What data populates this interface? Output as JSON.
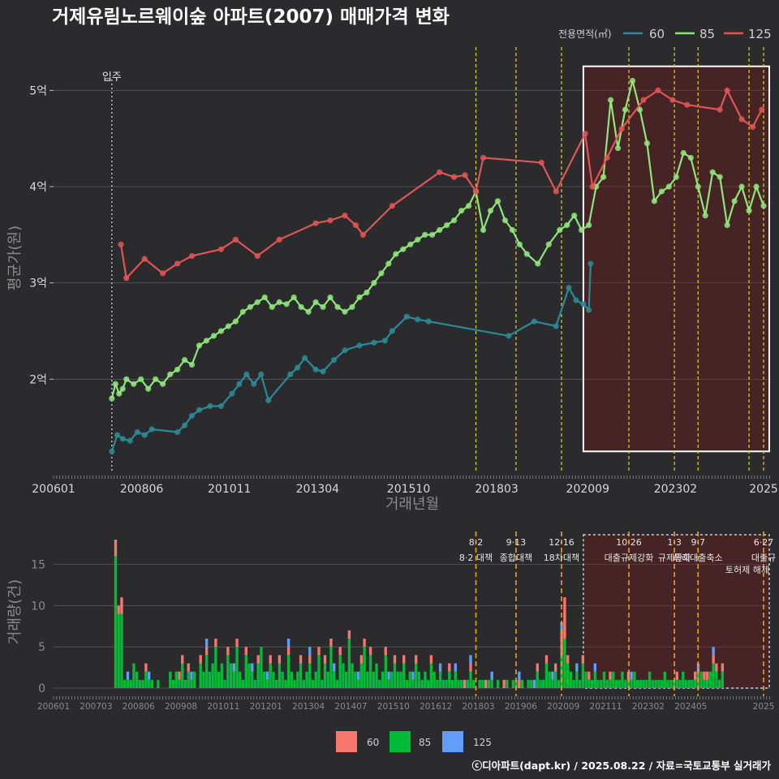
{
  "title": "거제유림노르웨이숲 아파트(2007) 매매가격 변화",
  "legend": {
    "title": "전용면적(㎡)",
    "items": [
      {
        "label": "60",
        "line_color": "#2a8a96",
        "bar_color": "#f8766d"
      },
      {
        "label": "85",
        "line_color": "#8ee67a",
        "bar_color": "#00ba38"
      },
      {
        "label": "125",
        "line_color": "#e05555",
        "bar_color": "#619cff"
      }
    ]
  },
  "credit": "ⓒ디아파트(dapt.kr) / 2025.08.22 / 자료=국토교통부 실거래가",
  "chart_data": [
    {
      "type": "line",
      "title": "거제유림노르웨이숲 아파트(2007) 매매가격 변화",
      "xlabel": "거래년월",
      "ylabel": "평균가(원)",
      "xlim": [
        2006.0,
        2025.7
      ],
      "ylim": [
        1.05,
        5.45
      ],
      "x_ticks": [
        {
          "x": 2006.0,
          "label": "200601"
        },
        {
          "x": 2008.42,
          "label": "200806"
        },
        {
          "x": 2010.83,
          "label": "201011"
        },
        {
          "x": 2013.25,
          "label": "201304"
        },
        {
          "x": 2015.75,
          "label": "201510"
        },
        {
          "x": 2018.17,
          "label": "201803"
        },
        {
          "x": 2020.67,
          "label": "202009"
        },
        {
          "x": 2023.08,
          "label": "202302"
        },
        {
          "x": 2025.5,
          "label": "2025"
        }
      ],
      "y_ticks": [
        {
          "y": 2,
          "label": "2억"
        },
        {
          "y": 3,
          "label": "3억"
        },
        {
          "y": 4,
          "label": "4억"
        },
        {
          "y": 5,
          "label": "5억"
        }
      ],
      "move_in": {
        "x": 2007.6,
        "label": "입주"
      },
      "policy_lines_x": [
        2017.6,
        2018.7,
        2019.95,
        2021.8,
        2023.05,
        2023.7,
        2025.1,
        2025.5
      ],
      "highlight_x": [
        2020.55,
        2025.7
      ],
      "series": [
        {
          "name": "60",
          "x": [
            2007.6,
            2007.75,
            2007.9,
            2008.1,
            2008.3,
            2008.5,
            2008.7,
            2009.4,
            2009.6,
            2009.8,
            2010.0,
            2010.3,
            2010.6,
            2010.9,
            2011.1,
            2011.3,
            2011.5,
            2011.7,
            2011.9,
            2012.5,
            2012.7,
            2012.9,
            2013.2,
            2013.4,
            2013.7,
            2014.0,
            2014.4,
            2014.8,
            2015.1,
            2015.3,
            2015.7,
            2016.0,
            2016.3,
            2018.5,
            2019.2,
            2019.8,
            2020.15,
            2020.35,
            2020.55,
            2020.7,
            2020.75
          ],
          "y": [
            1.25,
            1.42,
            1.38,
            1.36,
            1.45,
            1.42,
            1.48,
            1.45,
            1.52,
            1.62,
            1.68,
            1.72,
            1.72,
            1.85,
            1.95,
            2.05,
            1.95,
            2.05,
            1.78,
            2.05,
            2.12,
            2.22,
            2.1,
            2.08,
            2.2,
            2.3,
            2.35,
            2.38,
            2.4,
            2.5,
            2.65,
            2.62,
            2.6,
            2.45,
            2.6,
            2.55,
            2.95,
            2.82,
            2.78,
            2.72,
            3.2
          ]
        },
        {
          "name": "85",
          "x": [
            2007.6,
            2007.7,
            2007.8,
            2007.9,
            2008.0,
            2008.2,
            2008.4,
            2008.6,
            2008.8,
            2009.0,
            2009.2,
            2009.4,
            2009.6,
            2009.8,
            2010.0,
            2010.2,
            2010.4,
            2010.6,
            2010.8,
            2011.0,
            2011.2,
            2011.4,
            2011.6,
            2011.8,
            2012.0,
            2012.2,
            2012.4,
            2012.6,
            2012.8,
            2013.0,
            2013.2,
            2013.4,
            2013.6,
            2013.8,
            2014.0,
            2014.2,
            2014.4,
            2014.6,
            2014.8,
            2015.0,
            2015.2,
            2015.4,
            2015.6,
            2015.8,
            2016.0,
            2016.2,
            2016.4,
            2016.6,
            2016.8,
            2017.0,
            2017.2,
            2017.4,
            2017.6,
            2017.8,
            2018.0,
            2018.2,
            2018.4,
            2018.6,
            2018.8,
            2019.0,
            2019.3,
            2019.6,
            2019.9,
            2020.1,
            2020.3,
            2020.5,
            2020.7,
            2020.9,
            2021.1,
            2021.3,
            2021.5,
            2021.7,
            2021.9,
            2022.1,
            2022.3,
            2022.5,
            2022.7,
            2022.9,
            2023.1,
            2023.3,
            2023.5,
            2023.7,
            2023.9,
            2024.1,
            2024.3,
            2024.5,
            2024.7,
            2024.9,
            2025.1,
            2025.3,
            2025.5
          ],
          "y": [
            1.8,
            1.95,
            1.85,
            1.9,
            2.0,
            1.95,
            2.0,
            1.9,
            2.0,
            1.95,
            2.05,
            2.1,
            2.2,
            2.15,
            2.35,
            2.4,
            2.45,
            2.5,
            2.55,
            2.6,
            2.7,
            2.75,
            2.8,
            2.85,
            2.75,
            2.8,
            2.78,
            2.85,
            2.75,
            2.7,
            2.8,
            2.75,
            2.85,
            2.75,
            2.7,
            2.75,
            2.85,
            2.9,
            3.0,
            3.1,
            3.2,
            3.3,
            3.35,
            3.4,
            3.45,
            3.5,
            3.5,
            3.55,
            3.6,
            3.65,
            3.75,
            3.8,
            3.95,
            3.55,
            3.75,
            3.85,
            3.65,
            3.55,
            3.4,
            3.3,
            3.2,
            3.4,
            3.55,
            3.6,
            3.7,
            3.55,
            3.6,
            4.0,
            4.1,
            4.9,
            4.4,
            4.8,
            5.1,
            4.8,
            4.45,
            3.85,
            3.95,
            4.0,
            4.1,
            4.35,
            4.3,
            4.0,
            3.7,
            4.15,
            4.1,
            3.6,
            3.85,
            4.0,
            3.75,
            4.0,
            3.8
          ]
        },
        {
          "name": "125",
          "x": [
            2007.85,
            2008.0,
            2008.5,
            2009.0,
            2009.4,
            2009.8,
            2010.6,
            2011.0,
            2011.6,
            2012.2,
            2013.2,
            2013.6,
            2014.0,
            2014.3,
            2014.5,
            2015.3,
            2016.6,
            2017.0,
            2017.3,
            2017.6,
            2017.8,
            2019.4,
            2019.8,
            2020.6,
            2020.8,
            2021.2,
            2021.6,
            2022.2,
            2022.6,
            2023.0,
            2023.4,
            2024.3,
            2024.5,
            2024.9,
            2025.2,
            2025.45
          ],
          "y": [
            3.4,
            3.05,
            3.25,
            3.1,
            3.2,
            3.28,
            3.35,
            3.45,
            3.28,
            3.45,
            3.62,
            3.65,
            3.7,
            3.6,
            3.5,
            3.8,
            4.15,
            4.1,
            4.12,
            3.95,
            4.3,
            4.25,
            3.95,
            4.55,
            4.0,
            4.3,
            4.6,
            4.9,
            5.0,
            4.9,
            4.85,
            4.8,
            5.0,
            4.7,
            4.62,
            4.8
          ]
        }
      ]
    },
    {
      "type": "bar",
      "stacked": true,
      "ylabel": "거래량(건)",
      "ylim": [
        0,
        18
      ],
      "y_ticks": [
        0,
        5,
        10,
        15
      ],
      "x_tick_labels": [
        "200601",
        "200703",
        "200806",
        "200908",
        "201011",
        "201201",
        "201304",
        "201407",
        "201510",
        "201612",
        "201803",
        "201906",
        "202009",
        "202111",
        "202302",
        "202405",
        "2025"
      ],
      "series_names": [
        "60",
        "85",
        "125"
      ],
      "months_start": "2006-01",
      "volumes": {
        "85": [
          0,
          0,
          0,
          0,
          0,
          0,
          0,
          0,
          0,
          0,
          0,
          0,
          0,
          0,
          0,
          0,
          0,
          0,
          0,
          0,
          16,
          9,
          9,
          1,
          1,
          1,
          3,
          2,
          1,
          1,
          2,
          1,
          1,
          0,
          1,
          0,
          0,
          0,
          2,
          1,
          2,
          1,
          3,
          1,
          2,
          1,
          2,
          0,
          3,
          2,
          4,
          2,
          3,
          5,
          2,
          3,
          1,
          4,
          3,
          2,
          5,
          2,
          1,
          4,
          3,
          2,
          1,
          3,
          5,
          2,
          1,
          3,
          2,
          1,
          3,
          2,
          1,
          4,
          2,
          1,
          2,
          3,
          1,
          2,
          3,
          1,
          2,
          4,
          1,
          3,
          2,
          5,
          2,
          1,
          4,
          3,
          2,
          6,
          3,
          2,
          1,
          3,
          5,
          2,
          4,
          2,
          3,
          1,
          2,
          4,
          1,
          2,
          3,
          2,
          2,
          3,
          1,
          2,
          1,
          3,
          2,
          1,
          2,
          1,
          3,
          2,
          1,
          2,
          1,
          1,
          2,
          1,
          2,
          1,
          1,
          0,
          1,
          2,
          1,
          0,
          1,
          1,
          0,
          1,
          1,
          0,
          1,
          0,
          0,
          1,
          0,
          1,
          1,
          0,
          1,
          0,
          1,
          1,
          0,
          2,
          1,
          1,
          3,
          2,
          1,
          2,
          1,
          4,
          6,
          3,
          2,
          1,
          2,
          1,
          3,
          2,
          1,
          1,
          2,
          1,
          1,
          2,
          1,
          1,
          2,
          1,
          1,
          2,
          1,
          1,
          1,
          2,
          1,
          1,
          1,
          1,
          2,
          1,
          1,
          1,
          1,
          2,
          1,
          1,
          1,
          1,
          1,
          2,
          1,
          1,
          1,
          1,
          2,
          2,
          1,
          1,
          2,
          3,
          2,
          1,
          2
        ],
        "60": [
          0,
          0,
          0,
          0,
          0,
          0,
          0,
          0,
          0,
          0,
          0,
          0,
          0,
          0,
          0,
          0,
          0,
          0,
          0,
          0,
          2,
          1,
          2,
          0,
          0,
          0,
          0,
          0,
          0,
          0,
          1,
          0,
          0,
          0,
          0,
          0,
          0,
          0,
          0,
          0,
          0,
          1,
          1,
          0,
          1,
          0,
          0,
          0,
          1,
          0,
          1,
          0,
          0,
          1,
          0,
          0,
          0,
          1,
          0,
          0,
          1,
          0,
          0,
          1,
          0,
          0,
          0,
          1,
          0,
          0,
          0,
          1,
          0,
          0,
          1,
          0,
          0,
          1,
          0,
          0,
          0,
          1,
          0,
          0,
          1,
          0,
          0,
          1,
          0,
          1,
          0,
          1,
          0,
          0,
          1,
          0,
          0,
          1,
          0,
          0,
          0,
          1,
          1,
          0,
          1,
          0,
          0,
          0,
          0,
          1,
          0,
          0,
          1,
          0,
          0,
          1,
          0,
          0,
          0,
          1,
          0,
          0,
          0,
          0,
          1,
          0,
          0,
          0,
          0,
          0,
          1,
          0,
          0,
          0,
          0,
          1,
          0,
          1,
          0,
          0,
          0,
          0,
          1,
          0,
          0,
          0,
          0,
          0,
          1,
          0,
          0,
          0,
          0,
          1,
          0,
          0,
          0,
          0,
          0,
          1,
          0,
          0,
          1,
          0,
          0,
          1,
          0,
          3,
          5,
          1,
          0,
          0,
          0,
          0,
          1,
          0,
          1,
          0,
          0,
          0,
          0,
          0,
          0,
          1,
          0,
          0,
          0,
          0,
          0,
          1,
          0,
          0,
          0,
          0,
          0,
          0,
          0,
          0,
          0,
          0,
          0,
          0,
          0,
          0,
          0,
          1,
          0,
          0,
          0,
          0,
          0,
          1,
          0,
          0,
          1,
          1,
          0,
          1,
          1,
          0,
          1
        ],
        "125": [
          0,
          0,
          0,
          0,
          0,
          0,
          0,
          0,
          0,
          0,
          0,
          0,
          0,
          0,
          0,
          0,
          0,
          0,
          0,
          0,
          0,
          0,
          0,
          0,
          1,
          0,
          0,
          0,
          0,
          0,
          0,
          1,
          0,
          0,
          0,
          0,
          0,
          0,
          0,
          0,
          0,
          0,
          0,
          0,
          0,
          1,
          0,
          0,
          0,
          0,
          1,
          0,
          0,
          0,
          0,
          0,
          0,
          0,
          0,
          1,
          0,
          0,
          0,
          0,
          0,
          1,
          0,
          0,
          0,
          0,
          1,
          0,
          0,
          0,
          0,
          0,
          0,
          1,
          0,
          0,
          0,
          0,
          0,
          0,
          1,
          0,
          0,
          0,
          0,
          0,
          0,
          0,
          1,
          0,
          0,
          0,
          0,
          0,
          0,
          0,
          1,
          0,
          0,
          0,
          0,
          0,
          0,
          0,
          0,
          0,
          1,
          0,
          0,
          0,
          0,
          0,
          0,
          0,
          1,
          0,
          0,
          0,
          0,
          0,
          0,
          0,
          0,
          1,
          0,
          0,
          0,
          0,
          1,
          0,
          0,
          0,
          0,
          1,
          0,
          0,
          0,
          0,
          0,
          0,
          1,
          0,
          0,
          0,
          0,
          0,
          0,
          0,
          0,
          1,
          0,
          0,
          0,
          0,
          1,
          0,
          0,
          0,
          0,
          0,
          1,
          0,
          0,
          1,
          0,
          0,
          0,
          0,
          1,
          0,
          0,
          0,
          0,
          0,
          1,
          0,
          0,
          0,
          0,
          0,
          0,
          0,
          0,
          0,
          0,
          0,
          1,
          0,
          0,
          0,
          0,
          0,
          0,
          0,
          0,
          0,
          0,
          0,
          0,
          0,
          0,
          0,
          0,
          0,
          0,
          0,
          0,
          0,
          1,
          0,
          0,
          0,
          0,
          1,
          0,
          0
        ]
      },
      "policies": [
        {
          "x": 2017.6,
          "date": "8·2",
          "name": "8·2 대책"
        },
        {
          "x": 2018.7,
          "date": "9·13",
          "name": "종합대책"
        },
        {
          "x": 2019.95,
          "date": "12·16",
          "name": "18차대책"
        },
        {
          "x": 2021.8,
          "date": "10·26",
          "name": "대출규제강화"
        },
        {
          "x": 2023.05,
          "date": "1·3",
          "name": "규제완화"
        },
        {
          "x": 2023.7,
          "date": "9·7",
          "name": "특례대출축소"
        },
        {
          "x": 2025.5,
          "date": "6·27",
          "name": "대출규"
        }
      ],
      "policy_extra": "토허제 해제"
    }
  ]
}
